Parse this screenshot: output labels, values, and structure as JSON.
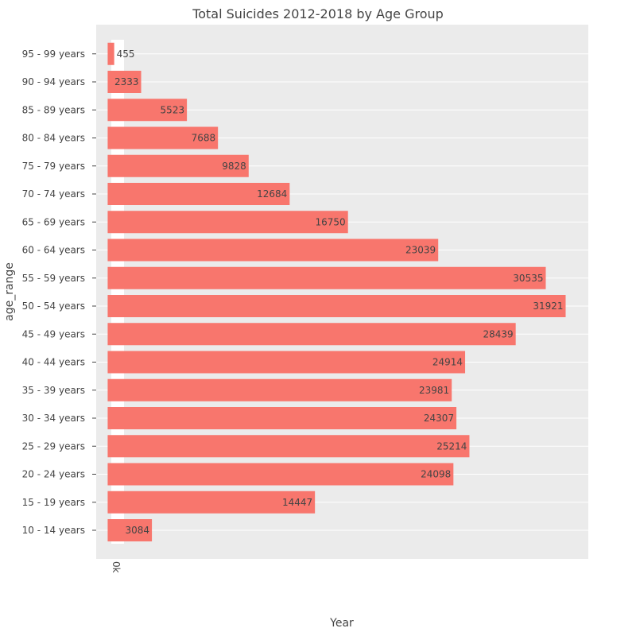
{
  "chart_data": {
    "type": "bar",
    "orientation": "horizontal",
    "title": "Total Suicides 2012-2018 by Age Group",
    "xlabel": "Year",
    "ylabel": "age_range",
    "x_tick_label": "0k",
    "xlim": [
      -800,
      33500
    ],
    "grid": true,
    "bar_color": "#f8766d",
    "panel_color": "#ebebeb",
    "categories": [
      "10 - 14 years",
      "15 - 19 years",
      "20 - 24 years",
      "25 - 29 years",
      "30 - 34 years",
      "35 - 39 years",
      "40 - 44 years",
      "45 - 49 years",
      "50 - 54 years",
      "55 - 59 years",
      "60 - 64 years",
      "65 - 69 years",
      "70 - 74 years",
      "75 - 79 years",
      "80 - 84 years",
      "85 - 89 years",
      "90 - 94 years",
      "95 - 99 years"
    ],
    "values": [
      3084,
      14447,
      24098,
      25214,
      24307,
      23981,
      24914,
      28439,
      31921,
      30535,
      23039,
      16750,
      12684,
      9828,
      7688,
      5523,
      2333,
      455
    ]
  }
}
